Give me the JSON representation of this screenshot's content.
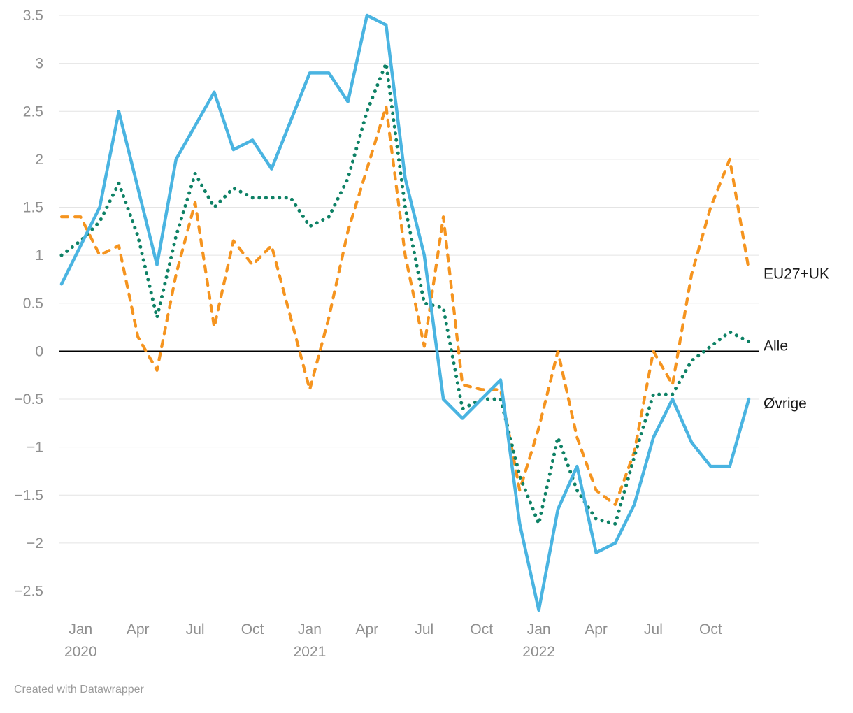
{
  "footer": {
    "text": "Created with Datawrapper"
  },
  "chart_data": {
    "type": "line",
    "title": "",
    "xlabel": "",
    "ylabel": "",
    "x_unit": "month",
    "months": [
      "Dec 2019",
      "Jan 2020",
      "Feb 2020",
      "Mar 2020",
      "Apr 2020",
      "May 2020",
      "Jun 2020",
      "Jul 2020",
      "Aug 2020",
      "Sep 2020",
      "Oct 2020",
      "Nov 2020",
      "Dec 2020",
      "Jan 2021",
      "Feb 2021",
      "Mar 2021",
      "Apr 2021",
      "May 2021",
      "Jun 2021",
      "Jul 2021",
      "Aug 2021",
      "Sep 2021",
      "Oct 2021",
      "Nov 2021",
      "Dec 2021",
      "Jan 2022",
      "Feb 2022",
      "Mar 2022",
      "Apr 2022",
      "May 2022",
      "Jun 2022",
      "Jul 2022",
      "Aug 2022",
      "Sep 2022",
      "Oct 2022",
      "Nov 2022",
      "Dec 2022"
    ],
    "series": [
      {
        "name": "EU27+UK",
        "color": "#F5941F",
        "style": "dashed",
        "values": [
          1.4,
          1.4,
          1.0,
          1.1,
          0.15,
          -0.2,
          0.8,
          1.55,
          0.25,
          1.15,
          0.9,
          1.1,
          0.35,
          -0.4,
          0.35,
          1.25,
          1.9,
          2.55,
          1.0,
          0.05,
          1.4,
          -0.35,
          -0.4,
          -0.4,
          -1.45,
          -0.8,
          0.0,
          -0.9,
          -1.45,
          -1.6,
          -1.05,
          0.0,
          -0.35,
          0.8,
          1.5,
          2.0,
          0.85
        ]
      },
      {
        "name": "Alle",
        "color": "#0E8165",
        "style": "dotted",
        "values": [
          1.0,
          1.15,
          1.35,
          1.75,
          1.2,
          0.35,
          1.2,
          1.85,
          1.5,
          1.7,
          1.6,
          1.6,
          1.6,
          1.3,
          1.4,
          1.8,
          2.5,
          3.0,
          1.5,
          0.5,
          0.45,
          -0.6,
          -0.5,
          -0.5,
          -1.3,
          -1.8,
          -0.9,
          -1.45,
          -1.75,
          -1.8,
          -1.1,
          -0.45,
          -0.45,
          -0.1,
          0.05,
          0.2,
          0.1
        ]
      },
      {
        "name": "Øvrige",
        "color": "#4AB4E1",
        "style": "solid",
        "values": [
          0.7,
          1.1,
          1.5,
          2.5,
          1.7,
          0.9,
          2.0,
          2.35,
          2.7,
          2.1,
          2.2,
          1.9,
          2.4,
          2.9,
          2.9,
          2.6,
          3.5,
          3.4,
          1.8,
          1.0,
          -0.5,
          -0.7,
          -0.5,
          -0.3,
          -1.8,
          -2.7,
          -1.65,
          -1.2,
          -2.1,
          -2.0,
          -1.6,
          -0.9,
          -0.5,
          -0.95,
          -1.2,
          -1.2,
          -0.5
        ]
      }
    ],
    "y_axis": {
      "min": -2.5,
      "max": 3.5,
      "tick_step": 0.5,
      "ticks": [
        {
          "value": 3.5,
          "label": "3.5"
        },
        {
          "value": 3,
          "label": "3"
        },
        {
          "value": 2.5,
          "label": "2.5"
        },
        {
          "value": 2,
          "label": "2"
        },
        {
          "value": 1.5,
          "label": "1.5"
        },
        {
          "value": 1,
          "label": "1"
        },
        {
          "value": 0.5,
          "label": "0.5"
        },
        {
          "value": 0,
          "label": "0"
        },
        {
          "value": -0.5,
          "label": "−0.5"
        },
        {
          "value": -1,
          "label": "−1"
        },
        {
          "value": -1.5,
          "label": "−1.5"
        },
        {
          "value": -2,
          "label": "−2"
        },
        {
          "value": -2.5,
          "label": "−2.5"
        }
      ],
      "zero_line": true
    },
    "x_ticks": [
      {
        "label": "Jan",
        "year": "2020",
        "index": 1
      },
      {
        "label": "Apr",
        "year": "",
        "index": 4
      },
      {
        "label": "Jul",
        "year": "",
        "index": 7
      },
      {
        "label": "Oct",
        "year": "",
        "index": 10
      },
      {
        "label": "Jan",
        "year": "2021",
        "index": 13
      },
      {
        "label": "Apr",
        "year": "",
        "index": 16
      },
      {
        "label": "Jul",
        "year": "",
        "index": 19
      },
      {
        "label": "Oct",
        "year": "",
        "index": 22
      },
      {
        "label": "Jan",
        "year": "2022",
        "index": 25
      },
      {
        "label": "Apr",
        "year": "",
        "index": 28
      },
      {
        "label": "Jul",
        "year": "",
        "index": 31
      },
      {
        "label": "Oct",
        "year": "",
        "index": 34
      }
    ],
    "grid": true,
    "grid_color": "#e4e4e4",
    "axis_text_color": "#8f8f8f",
    "label_text_color": "#1a1a1a",
    "legend_position": "right-end-labels"
  }
}
